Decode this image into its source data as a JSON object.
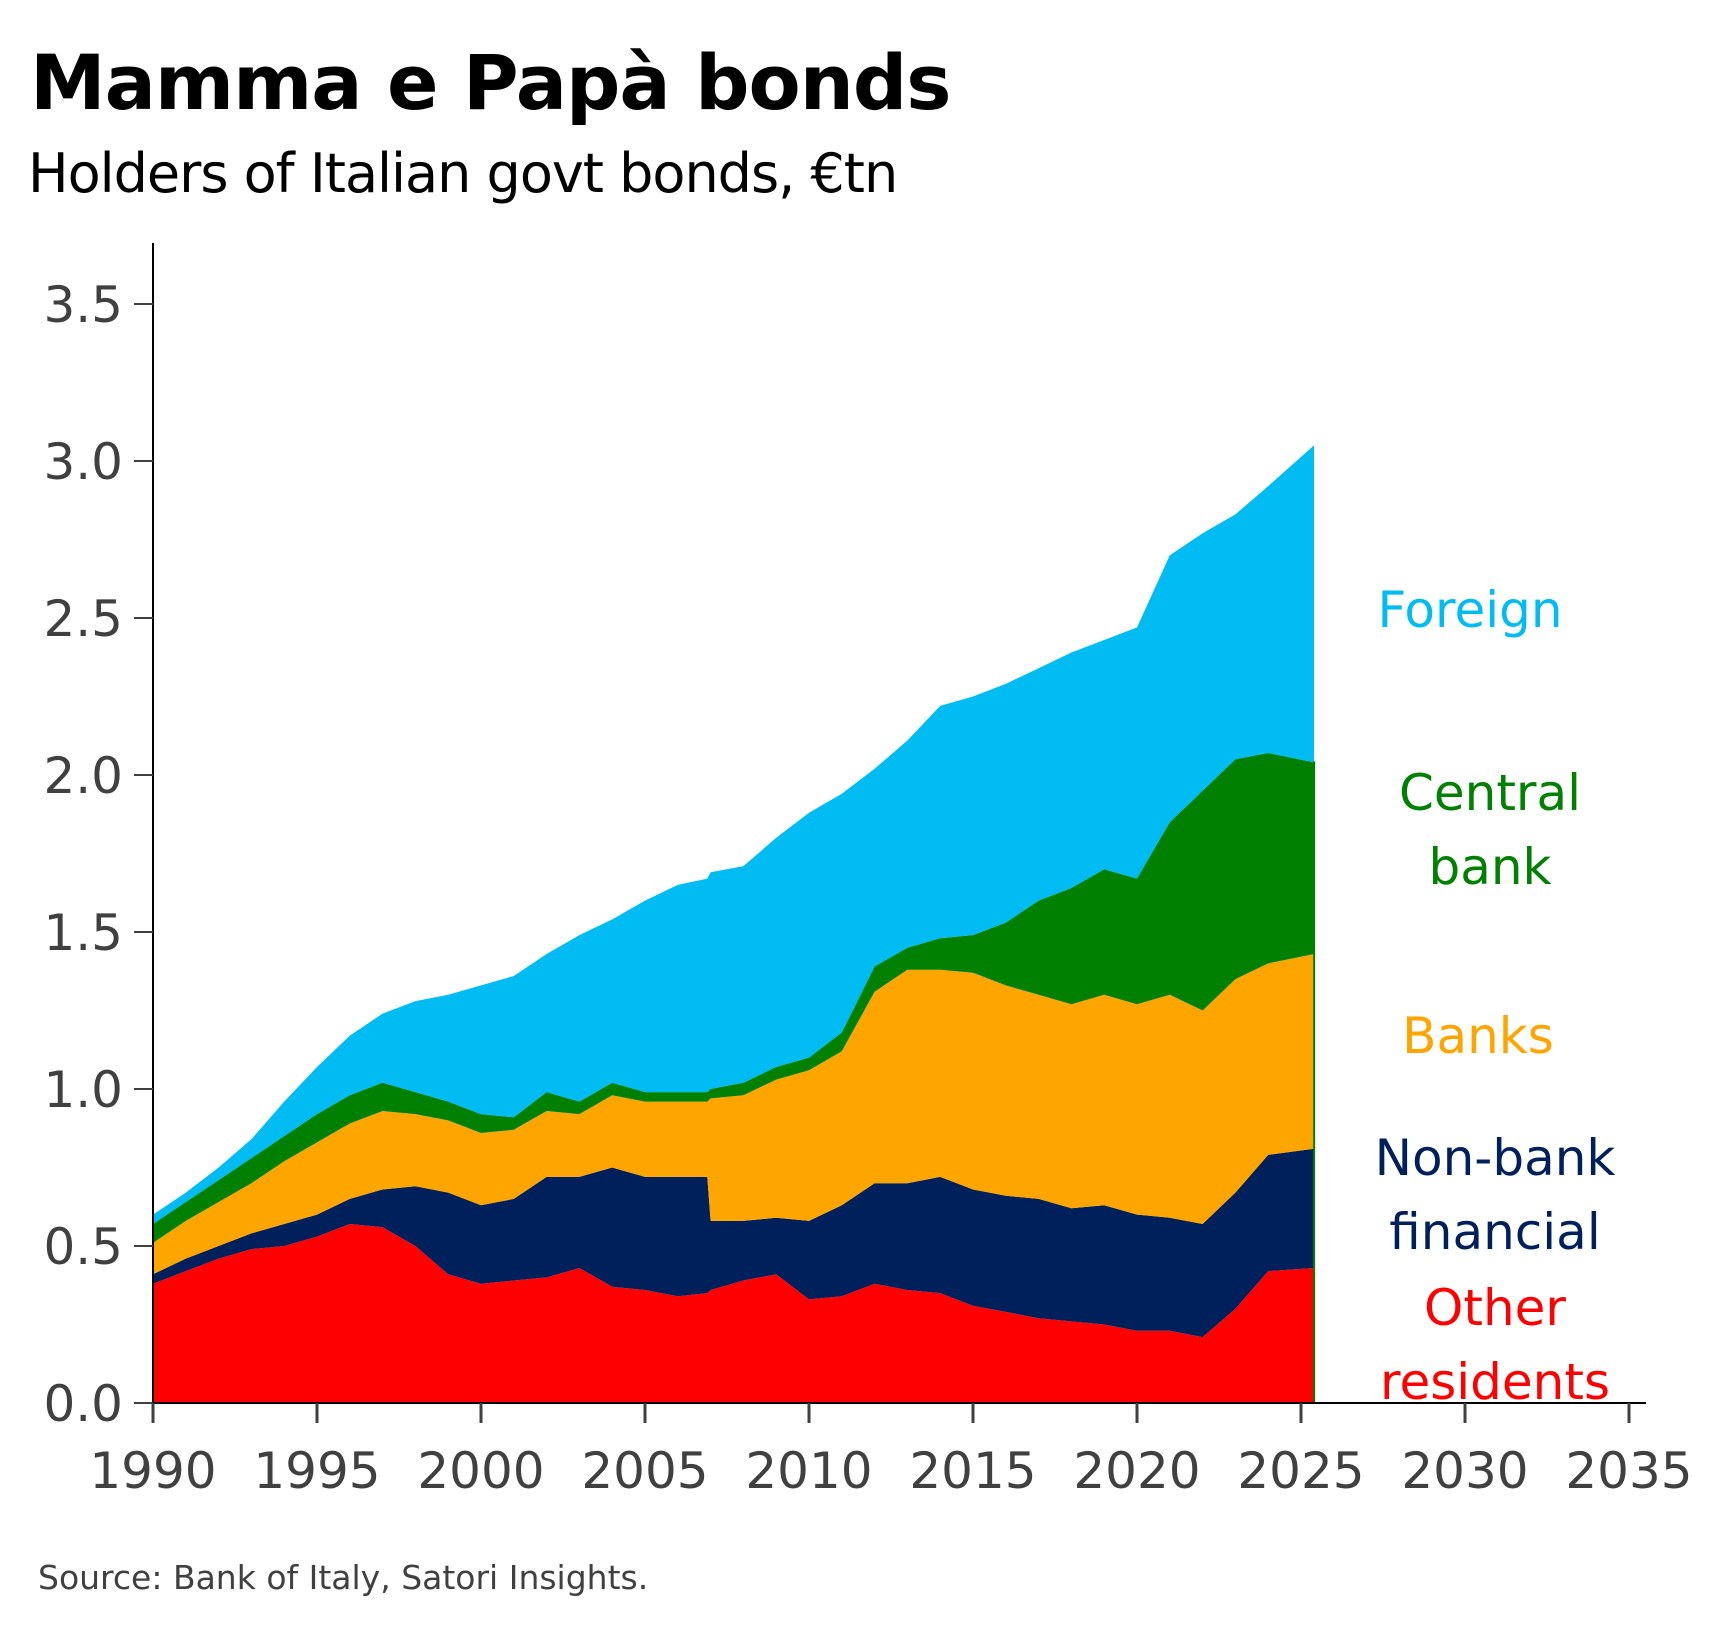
{
  "title": "Mamma e Papà bonds",
  "subtitle": "Holders of Italian govt bonds, €tn",
  "source": "Source: Bank of Italy, Satori Insights.",
  "chart_data": {
    "type": "area",
    "stacked": true,
    "title": "Mamma e Papà bonds",
    "subtitle": "Holders of Italian govt bonds, €tn",
    "xlabel": "",
    "ylabel": "",
    "xlim": [
      1990,
      2035
    ],
    "ylim": [
      0,
      3.6
    ],
    "x_ticks": [
      1990,
      1995,
      2000,
      2005,
      2010,
      2015,
      2020,
      2025,
      2030,
      2035
    ],
    "y_ticks": [
      0.0,
      0.5,
      1.0,
      1.5,
      2.0,
      2.5,
      3.0,
      3.5
    ],
    "y_tick_labels": [
      "0.0",
      "0.5",
      "1.0",
      "1.5",
      "2.0",
      "2.5",
      "3.0",
      "3.5"
    ],
    "grid": false,
    "legend": "inline labels right of data",
    "x": [
      1990,
      1991,
      1992,
      1993,
      1994,
      1995,
      1996,
      1997,
      1998,
      1999,
      2000,
      2001,
      2002,
      2003,
      2004,
      2005,
      2006,
      2006.9,
      2007,
      2008,
      2009,
      2010,
      2011,
      2012,
      2013,
      2014,
      2015,
      2016,
      2017,
      2018,
      2019,
      2020,
      2021,
      2022,
      2023,
      2024,
      2025.4
    ],
    "series": [
      {
        "name": "Other residents",
        "label_lines": [
          "Other",
          "residents"
        ],
        "color": "#ff0000",
        "values": [
          0.38,
          0.42,
          0.46,
          0.49,
          0.5,
          0.53,
          0.57,
          0.56,
          0.5,
          0.41,
          0.38,
          0.39,
          0.4,
          0.43,
          0.37,
          0.36,
          0.34,
          0.35,
          0.36,
          0.39,
          0.41,
          0.33,
          0.34,
          0.38,
          0.36,
          0.35,
          0.31,
          0.29,
          0.27,
          0.26,
          0.25,
          0.23,
          0.23,
          0.21,
          0.3,
          0.42,
          0.43
        ]
      },
      {
        "name": "Non-bank financial",
        "label_lines": [
          "Non-bank",
          "financial"
        ],
        "color": "#00205b",
        "values": [
          0.03,
          0.04,
          0.04,
          0.05,
          0.07,
          0.07,
          0.08,
          0.12,
          0.19,
          0.26,
          0.25,
          0.26,
          0.32,
          0.29,
          0.38,
          0.36,
          0.38,
          0.37,
          0.22,
          0.19,
          0.18,
          0.25,
          0.29,
          0.32,
          0.34,
          0.37,
          0.37,
          0.37,
          0.38,
          0.36,
          0.38,
          0.37,
          0.36,
          0.36,
          0.37,
          0.37,
          0.38
        ]
      },
      {
        "name": "Banks",
        "label_lines": [
          "Banks"
        ],
        "color": "#ffa500",
        "values": [
          0.1,
          0.12,
          0.14,
          0.16,
          0.2,
          0.23,
          0.24,
          0.25,
          0.23,
          0.23,
          0.23,
          0.22,
          0.21,
          0.2,
          0.23,
          0.24,
          0.24,
          0.24,
          0.39,
          0.4,
          0.44,
          0.48,
          0.49,
          0.61,
          0.68,
          0.66,
          0.69,
          0.67,
          0.65,
          0.65,
          0.67,
          0.67,
          0.71,
          0.68,
          0.68,
          0.61,
          0.62
        ]
      },
      {
        "name": "Central bank",
        "label_lines": [
          "Central",
          "bank"
        ],
        "color": "#008000",
        "values": [
          0.06,
          0.06,
          0.07,
          0.08,
          0.08,
          0.09,
          0.09,
          0.09,
          0.07,
          0.06,
          0.06,
          0.04,
          0.06,
          0.04,
          0.04,
          0.03,
          0.03,
          0.03,
          0.03,
          0.04,
          0.04,
          0.04,
          0.06,
          0.08,
          0.07,
          0.1,
          0.12,
          0.2,
          0.3,
          0.37,
          0.4,
          0.4,
          0.55,
          0.7,
          0.7,
          0.67,
          0.61
        ]
      },
      {
        "name": "Foreign",
        "label_lines": [
          "Foreign"
        ],
        "color": "#00bcf2",
        "values": [
          0.03,
          0.03,
          0.04,
          0.06,
          0.11,
          0.15,
          0.19,
          0.22,
          0.29,
          0.34,
          0.41,
          0.45,
          0.44,
          0.53,
          0.52,
          0.61,
          0.66,
          0.68,
          0.69,
          0.69,
          0.73,
          0.78,
          0.76,
          0.63,
          0.66,
          0.74,
          0.76,
          0.76,
          0.74,
          0.75,
          0.73,
          0.8,
          0.85,
          0.82,
          0.78,
          0.85,
          1.01
        ]
      }
    ]
  }
}
